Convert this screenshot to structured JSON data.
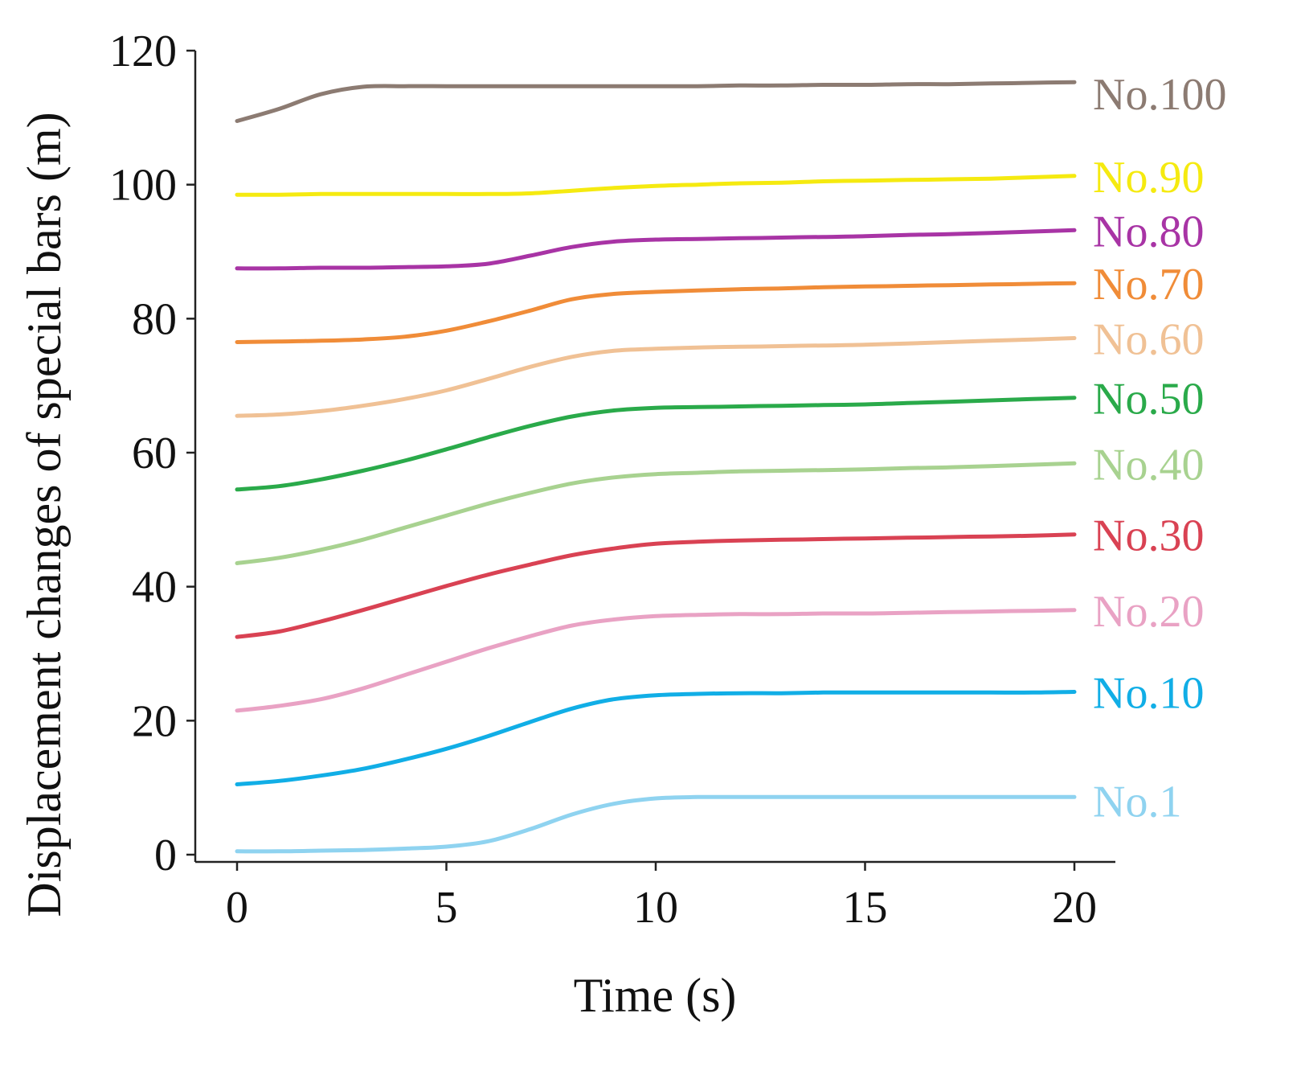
{
  "chart_data": {
    "type": "line",
    "title": "",
    "xlabel": "Time (s)",
    "ylabel": "Displacement changes of special bars (m)",
    "xlim": [
      -1,
      21
    ],
    "ylim": [
      0,
      120
    ],
    "xticks": [
      0,
      5,
      10,
      15,
      20
    ],
    "yticks": [
      0,
      20,
      40,
      60,
      80,
      100,
      120
    ],
    "x": [
      0,
      1,
      2,
      3,
      4,
      5,
      6,
      7,
      8,
      9,
      10,
      11,
      12,
      13,
      14,
      15,
      16,
      17,
      18,
      19,
      20
    ],
    "series": [
      {
        "name": "No.1",
        "color": "#8fd3f0",
        "values": [
          0.5,
          0.5,
          0.6,
          0.7,
          0.9,
          1.2,
          2.0,
          3.8,
          6.0,
          7.6,
          8.4,
          8.6,
          8.6,
          8.6,
          8.6,
          8.6,
          8.6,
          8.6,
          8.6,
          8.6,
          8.6
        ]
      },
      {
        "name": "No.10",
        "color": "#11aee6",
        "values": [
          10.5,
          11.0,
          11.8,
          12.8,
          14.2,
          15.8,
          17.7,
          19.8,
          21.8,
          23.2,
          23.8,
          24.0,
          24.1,
          24.1,
          24.2,
          24.2,
          24.2,
          24.2,
          24.2,
          24.2,
          24.3
        ]
      },
      {
        "name": "No.20",
        "color": "#e9a2c4",
        "values": [
          21.5,
          22.2,
          23.2,
          24.8,
          26.8,
          28.8,
          30.8,
          32.6,
          34.2,
          35.1,
          35.6,
          35.8,
          35.9,
          35.9,
          36.0,
          36.0,
          36.1,
          36.2,
          36.3,
          36.4,
          36.5
        ]
      },
      {
        "name": "No.30",
        "color": "#d94253",
        "values": [
          32.5,
          33.3,
          34.8,
          36.5,
          38.3,
          40.1,
          41.8,
          43.3,
          44.7,
          45.7,
          46.4,
          46.7,
          46.9,
          47.0,
          47.1,
          47.2,
          47.3,
          47.4,
          47.5,
          47.6,
          47.8
        ]
      },
      {
        "name": "No.40",
        "color": "#a8d290",
        "values": [
          43.5,
          44.3,
          45.5,
          47.0,
          48.8,
          50.6,
          52.4,
          54.0,
          55.4,
          56.3,
          56.8,
          57.0,
          57.2,
          57.3,
          57.4,
          57.5,
          57.7,
          57.8,
          58.0,
          58.2,
          58.4
        ]
      },
      {
        "name": "No.50",
        "color": "#2aaa4a",
        "values": [
          54.5,
          55.0,
          56.0,
          57.3,
          58.8,
          60.5,
          62.3,
          64.0,
          65.4,
          66.3,
          66.7,
          66.8,
          66.9,
          67.0,
          67.1,
          67.2,
          67.4,
          67.6,
          67.8,
          68.0,
          68.2
        ]
      },
      {
        "name": "No.60",
        "color": "#f0c195",
        "values": [
          65.5,
          65.7,
          66.2,
          67.0,
          68.0,
          69.3,
          71.0,
          72.8,
          74.3,
          75.2,
          75.5,
          75.7,
          75.8,
          75.9,
          76.0,
          76.1,
          76.3,
          76.5,
          76.7,
          76.9,
          77.1
        ]
      },
      {
        "name": "No.70",
        "color": "#f08c38",
        "values": [
          76.5,
          76.6,
          76.7,
          76.9,
          77.3,
          78.2,
          79.6,
          81.2,
          82.9,
          83.7,
          84.0,
          84.2,
          84.4,
          84.5,
          84.7,
          84.8,
          84.9,
          85.0,
          85.1,
          85.2,
          85.3
        ]
      },
      {
        "name": "No.80",
        "color": "#a834a5",
        "values": [
          87.5,
          87.5,
          87.6,
          87.6,
          87.7,
          87.8,
          88.2,
          89.4,
          90.7,
          91.5,
          91.8,
          91.9,
          92.0,
          92.1,
          92.2,
          92.3,
          92.5,
          92.6,
          92.8,
          93.0,
          93.2
        ]
      },
      {
        "name": "No.90",
        "color": "#f5ea10",
        "values": [
          98.5,
          98.5,
          98.6,
          98.6,
          98.6,
          98.6,
          98.6,
          98.7,
          99.1,
          99.5,
          99.8,
          100.0,
          100.2,
          100.3,
          100.5,
          100.6,
          100.7,
          100.8,
          100.9,
          101.1,
          101.3
        ]
      },
      {
        "name": "No.100",
        "color": "#8c7b72",
        "values": [
          109.5,
          111.3,
          113.5,
          114.6,
          114.7,
          114.7,
          114.7,
          114.7,
          114.7,
          114.7,
          114.7,
          114.7,
          114.8,
          114.8,
          114.9,
          114.9,
          115.0,
          115.0,
          115.1,
          115.2,
          115.3
        ]
      }
    ]
  }
}
